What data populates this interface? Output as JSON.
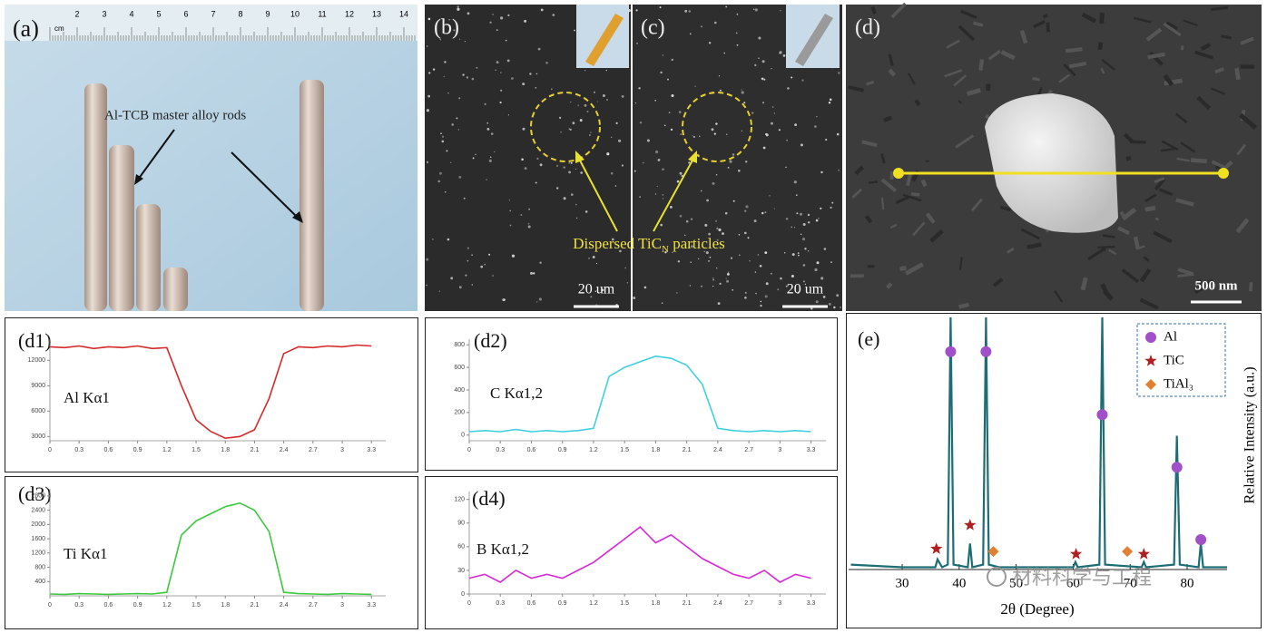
{
  "panels": {
    "a": {
      "label": "(a)",
      "ruler_unit": "cm",
      "ruler_numbers": [
        "2",
        "3",
        "4",
        "5",
        "6",
        "7",
        "8",
        "9",
        "10",
        "11",
        "12",
        "13",
        "14"
      ],
      "annotation": "Al-TCB master alloy rods"
    },
    "b": {
      "label": "(b)",
      "scale_bar": "20 um"
    },
    "c": {
      "label": "(c)",
      "scale_bar": "20 um"
    },
    "bc_annotation": {
      "text": "Dispersed TiC",
      "sub": "N",
      "tail": " particles"
    },
    "d": {
      "label": "(d)",
      "scale_bar": "500 nm"
    }
  },
  "chart_data": [
    {
      "type": "line",
      "label": "(d1)",
      "annotation": "Al Kα1",
      "color": "#d42a2a",
      "x": [
        0,
        0.15,
        0.3,
        0.45,
        0.6,
        0.75,
        0.9,
        1.05,
        1.2,
        1.35,
        1.5,
        1.65,
        1.8,
        1.95,
        2.1,
        2.25,
        2.4,
        2.55,
        2.7,
        2.85,
        3,
        3.15,
        3.3
      ],
      "values": [
        13600,
        13500,
        13700,
        13400,
        13600,
        13500,
        13700,
        13400,
        13500,
        9000,
        5000,
        3600,
        2800,
        3000,
        3800,
        7500,
        12800,
        13600,
        13500,
        13700,
        13600,
        13800,
        13700
      ],
      "xlim": [
        0,
        3.4
      ],
      "xticks": [
        0,
        0.3,
        0.6,
        0.9,
        1.2,
        1.5,
        1.8,
        2.1,
        2.4,
        2.7,
        3,
        3.3
      ],
      "ylim": [
        2500,
        14500
      ],
      "yticks": [
        3000,
        6000,
        9000,
        12000
      ]
    },
    {
      "type": "line",
      "label": "(d2)",
      "annotation": "C Kα1,2",
      "color": "#3fd0e0",
      "x": [
        0,
        0.15,
        0.3,
        0.45,
        0.6,
        0.75,
        0.9,
        1.05,
        1.2,
        1.35,
        1.5,
        1.65,
        1.8,
        1.95,
        2.1,
        2.25,
        2.4,
        2.55,
        2.7,
        2.85,
        3,
        3.15,
        3.3
      ],
      "values": [
        30,
        40,
        30,
        50,
        30,
        40,
        30,
        40,
        60,
        520,
        600,
        650,
        700,
        680,
        620,
        450,
        60,
        40,
        30,
        40,
        30,
        40,
        30
      ],
      "xlim": [
        0,
        3.4
      ],
      "xticks": [
        0,
        0.3,
        0.6,
        0.9,
        1.2,
        1.5,
        1.8,
        2.1,
        2.4,
        2.7,
        3,
        3.3
      ],
      "ylim": [
        -50,
        850
      ],
      "yticks": [
        0,
        200,
        400,
        600,
        800
      ]
    },
    {
      "type": "line",
      "label": "(d3)",
      "annotation": "Ti Kα1",
      "color": "#3cc83c",
      "x": [
        0,
        0.15,
        0.3,
        0.45,
        0.6,
        0.75,
        0.9,
        1.05,
        1.2,
        1.35,
        1.5,
        1.65,
        1.8,
        1.95,
        2.1,
        2.25,
        2.4,
        2.55,
        2.7,
        2.85,
        3,
        3.15,
        3.3
      ],
      "values": [
        50,
        40,
        60,
        50,
        40,
        50,
        60,
        50,
        100,
        1700,
        2100,
        2300,
        2500,
        2600,
        2400,
        1800,
        100,
        60,
        50,
        40,
        60,
        50,
        40
      ],
      "xlim": [
        0,
        3.4
      ],
      "xticks": [
        0,
        0.3,
        0.6,
        0.9,
        1.2,
        1.5,
        1.8,
        2.1,
        2.4,
        2.7,
        3,
        3.3
      ],
      "ylim": [
        0,
        3000
      ],
      "yticks": [
        400,
        800,
        1200,
        1600,
        2000,
        2400,
        2800
      ]
    },
    {
      "type": "line",
      "label": "(d4)",
      "annotation": "B Kα1,2",
      "color": "#d828d8",
      "x": [
        0,
        0.15,
        0.3,
        0.45,
        0.6,
        0.75,
        0.9,
        1.05,
        1.2,
        1.35,
        1.5,
        1.65,
        1.8,
        1.95,
        2.1,
        2.25,
        2.4,
        2.55,
        2.7,
        2.85,
        3,
        3.15,
        3.3
      ],
      "values": [
        20,
        25,
        15,
        30,
        20,
        25,
        20,
        30,
        40,
        55,
        70,
        85,
        65,
        75,
        60,
        45,
        35,
        25,
        20,
        30,
        15,
        25,
        20
      ],
      "xlim": [
        0,
        3.4
      ],
      "xticks": [
        0,
        0.3,
        0.6,
        0.9,
        1.2,
        1.5,
        1.8,
        2.1,
        2.4,
        2.7,
        3,
        3.3
      ],
      "ylim": [
        0,
        130
      ],
      "yticks": [
        0,
        30,
        60,
        90,
        120
      ]
    },
    {
      "type": "xrd",
      "label": "(e)",
      "xlabel": "2θ (Degree)",
      "ylabel": "Relative Intensity (a.u.)",
      "line_color": "#1d6d74",
      "x": [
        21,
        30,
        35,
        35.8,
        36.2,
        37,
        38,
        38.5,
        39,
        41.5,
        41.9,
        42.3,
        44.2,
        44.7,
        45.2,
        47,
        60,
        60.4,
        60.8,
        64.6,
        65.1,
        65.6,
        72,
        72.4,
        72.8,
        77.7,
        78.2,
        78.7,
        82,
        82.4,
        82.8,
        87
      ],
      "values": [
        6,
        5,
        5,
        5,
        8,
        5,
        6,
        100,
        6,
        5,
        14,
        5,
        6,
        100,
        6,
        5,
        5,
        7,
        5,
        6,
        100,
        6,
        5,
        7,
        5,
        6,
        55,
        6,
        5,
        14,
        5,
        5
      ],
      "xlim": [
        20.6,
        87
      ],
      "xticks": [
        30,
        40,
        50,
        60,
        70,
        80
      ],
      "ylim": [
        0,
        100
      ],
      "series": [
        {
          "name": "Al",
          "color": "#a050c8",
          "marker": "circle",
          "x": [
            38.5,
            44.7,
            65.1,
            78.2,
            82.4
          ],
          "values": [
            87,
            87,
            63,
            43,
            15.5
          ]
        },
        {
          "name": "TiC",
          "color": "#b02020",
          "marker": "star",
          "x": [
            36,
            41.9,
            60.5,
            72.4
          ],
          "values": [
            12,
            21,
            10,
            10
          ]
        },
        {
          "name": "TiAl₃",
          "color": "#e08030",
          "marker": "diamond",
          "x": [
            46,
            69.5
          ],
          "values": [
            11,
            11
          ]
        }
      ]
    }
  ],
  "watermark": "材料科学与工程"
}
